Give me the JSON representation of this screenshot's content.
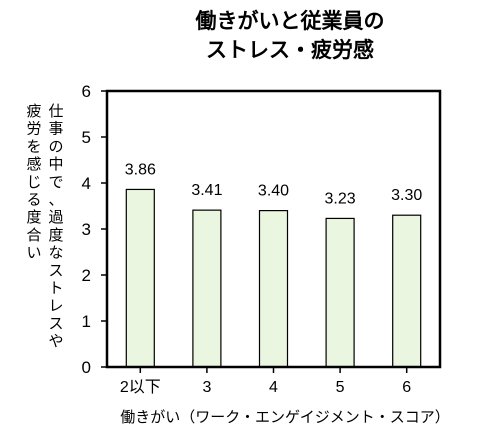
{
  "chart_data": {
    "type": "bar",
    "title_lines": [
      "働きがいと従業員の",
      "ストレス・疲労感"
    ],
    "categories": [
      "2以下",
      "3",
      "4",
      "5",
      "6"
    ],
    "values": [
      3.86,
      3.41,
      3.4,
      3.23,
      3.3
    ],
    "value_labels": [
      "3.86",
      "3.41",
      "3.40",
      "3.23",
      "3.30"
    ],
    "ylim": [
      0,
      6
    ],
    "yticks": [
      "0",
      "1",
      "2",
      "3",
      "4",
      "5",
      "6"
    ],
    "xlabel": "働きがい（ワーク・エンゲイジメント・スコア）",
    "ylabel_columns": [
      "仕事の中で、過度なストレスや",
      "疲労を感じる度合い"
    ],
    "grid": false,
    "colors": {
      "bar_fill": "#ebf6e0",
      "bar_stroke": "#000000",
      "axis": "#000000"
    }
  }
}
